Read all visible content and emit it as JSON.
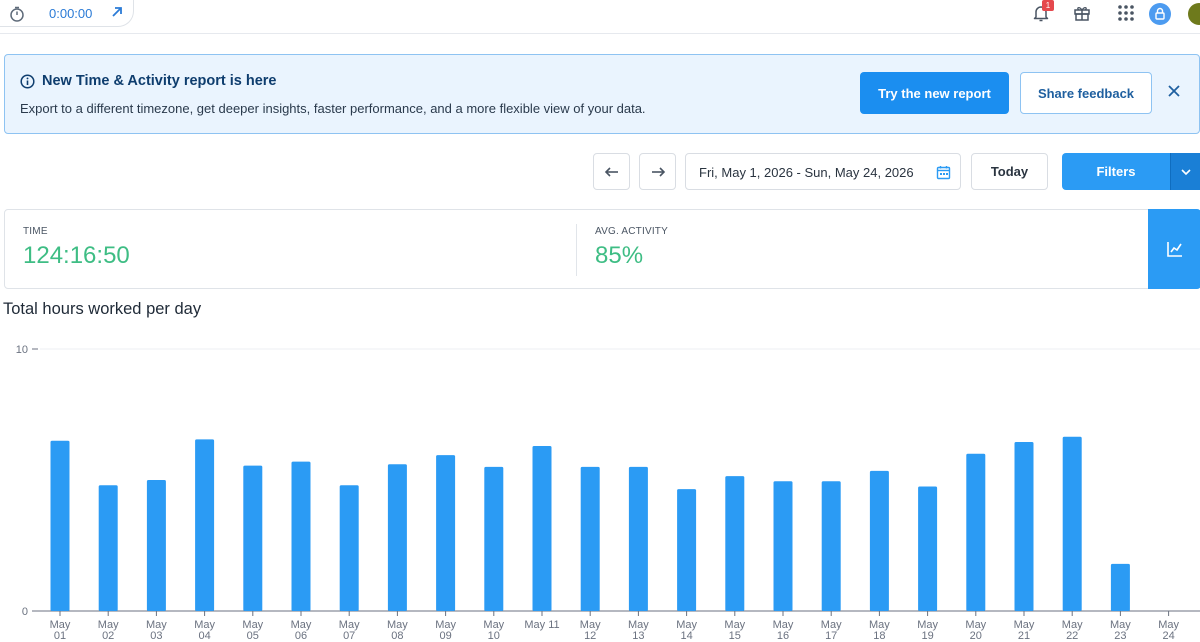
{
  "topbar": {
    "timer_value": "0:00:00",
    "icons": [
      "stopwatch-icon",
      "open-external-icon",
      "bell-icon",
      "gift-icon",
      "apps-grid-icon",
      "user-avatar-icon"
    ],
    "notification_count": "1"
  },
  "banner": {
    "title": "New Time & Activity report is here",
    "text": "Export to a different timezone, get deeper insights, faster performance, and a more flexible view of your data.",
    "primary_button": "Try the new report",
    "secondary_button": "Share feedback"
  },
  "date_controls": {
    "range": "Fri, May 1, 2026 - Sun, May 24, 2026",
    "today_label": "Today",
    "filters_label": "Filters"
  },
  "summary": {
    "time_label": "TIME",
    "time_value": "124:16:50",
    "activity_label": "AVG. ACTIVITY",
    "activity_value": "85%"
  },
  "colors": {
    "accent": "#2b9bf4",
    "positive": "#3ebd84",
    "bar": "#2b9bf4"
  },
  "chart_data": {
    "type": "bar",
    "title": "Total hours worked per day",
    "ylim": [
      0,
      10
    ],
    "yticks": [
      "0",
      "10"
    ],
    "categories": [
      [
        "May",
        "01"
      ],
      [
        "May",
        "02"
      ],
      [
        "May",
        "03"
      ],
      [
        "May",
        "04"
      ],
      [
        "May",
        "05"
      ],
      [
        "May",
        "06"
      ],
      [
        "May",
        "07"
      ],
      [
        "May",
        "08"
      ],
      [
        "May",
        "09"
      ],
      [
        "May",
        "10"
      ],
      [
        "May 11",
        ""
      ],
      [
        "May",
        "12"
      ],
      [
        "May",
        "13"
      ],
      [
        "May",
        "14"
      ],
      [
        "May",
        "15"
      ],
      [
        "May",
        "16"
      ],
      [
        "May",
        "17"
      ],
      [
        "May",
        "18"
      ],
      [
        "May",
        "19"
      ],
      [
        "May",
        "20"
      ],
      [
        "May",
        "21"
      ],
      [
        "May",
        "22"
      ],
      [
        "May",
        "23"
      ],
      [
        "May",
        "24"
      ]
    ],
    "values": [
      6.5,
      4.8,
      5.0,
      6.55,
      5.55,
      5.7,
      4.8,
      5.6,
      5.95,
      5.5,
      6.3,
      5.5,
      5.5,
      4.65,
      5.15,
      4.95,
      4.95,
      5.35,
      4.75,
      6.0,
      6.45,
      6.65,
      1.8,
      0
    ]
  }
}
